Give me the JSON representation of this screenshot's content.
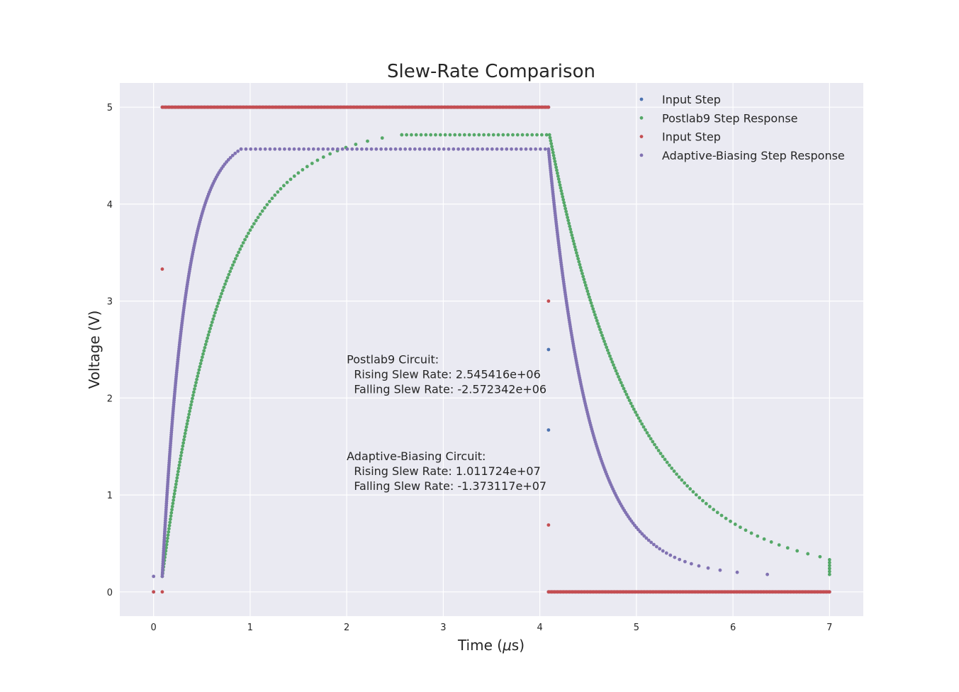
{
  "chart_data": {
    "type": "scatter",
    "title": "Slew-Rate Comparison",
    "xlabel": "Time ($\\mu$s)",
    "xlabel_parts": [
      "Time (",
      "μ",
      "s)"
    ],
    "ylabel": "Voltage (V)",
    "xlim": [
      -0.35,
      7.35
    ],
    "ylim": [
      -0.25,
      5.25
    ],
    "xticks": [
      0,
      1,
      2,
      3,
      4,
      5,
      6,
      7
    ],
    "yticks": [
      0,
      1,
      2,
      3,
      4,
      5
    ],
    "grid": true,
    "legend_position": "top-right",
    "style": {
      "background": "#eaeaf2",
      "grid_color": "#ffffff"
    },
    "series": [
      {
        "name": "Input Step",
        "color": "#4c72b0",
        "kind": "step",
        "low": 0.0,
        "high": 5.0,
        "rise_at": 0.09,
        "fall_at": 4.09,
        "x_end": 7.0,
        "n_high": 120,
        "n_low": 95,
        "edge_points": [
          [
            0.0,
            0.0
          ],
          [
            4.09,
            2.5
          ],
          [
            4.09,
            1.67
          ]
        ]
      },
      {
        "name": "Postlab9 Step Response",
        "color": "#55a868",
        "kind": "response",
        "v0": 0.16,
        "vmax": 4.8,
        "rise_start": 0.09,
        "rise_tau": 0.62,
        "rise_knee": 4.0,
        "fall_start": 4.1,
        "fall_tau": 0.9,
        "x_end": 7.0,
        "n_rise": 140,
        "n_fall": 150
      },
      {
        "name": "Input Step",
        "color": "#c44e52",
        "kind": "step",
        "low": 0.0,
        "high": 5.0,
        "rise_at": 0.09,
        "fall_at": 4.09,
        "x_end": 7.0,
        "n_high": 260,
        "n_low": 220,
        "edge_points": [
          [
            0.0,
            0.0
          ],
          [
            0.09,
            0.0
          ],
          [
            0.09,
            3.33
          ],
          [
            4.09,
            3.0
          ],
          [
            4.09,
            0.69
          ]
        ]
      },
      {
        "name": "Adaptive-Biasing Step Response",
        "color": "#8172b2",
        "kind": "response",
        "v0": 0.16,
        "vmax": 4.72,
        "rise_start": 0.09,
        "rise_tau": 0.24,
        "rise_knee": 3.4,
        "fall_start": 4.09,
        "fall_tau": 0.42,
        "x_end": 7.0,
        "n_rise": 200,
        "n_fall": 200,
        "extra_points": [
          [
            0.0,
            0.16
          ]
        ]
      }
    ],
    "annotations": [
      {
        "x": 2.0,
        "y": 2.25,
        "lines": [
          "Postlab9 Circuit:",
          "  Rising Slew Rate: 2.545416e+06",
          "  Falling Slew Rate: -2.572342e+06"
        ]
      },
      {
        "x": 2.0,
        "y": 1.25,
        "lines": [
          "Adaptive-Biasing Circuit:",
          "  Rising Slew Rate: 1.011724e+07",
          "  Falling Slew Rate: -1.373117e+07"
        ]
      }
    ]
  }
}
